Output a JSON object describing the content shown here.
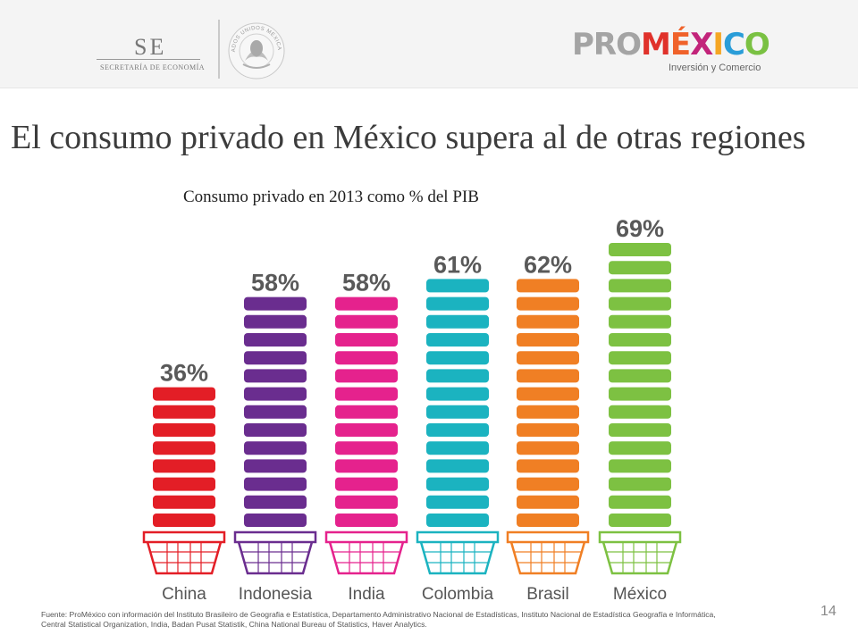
{
  "header": {
    "se_logo": {
      "abbr": "SE",
      "name": "SECRETARÍA DE ECONOMÍA"
    },
    "seal": {
      "text": "ESTADOS UNIDOS MEXICANOS"
    },
    "promexico": {
      "pro": "PRO",
      "mexico_letters": [
        "M",
        "É",
        "X",
        "I",
        "C",
        "O"
      ],
      "tagline": "Inversión y Comercio"
    }
  },
  "page_title": "El consumo privado en México supera al de otras regiones",
  "chart_title": "Consumo privado en 2013 como % del PIB",
  "chart_data": {
    "type": "bar",
    "title": "Consumo privado en 2013 como % del PIB",
    "categories": [
      "China",
      "Indonesia",
      "India",
      "Colombia",
      "Brasil",
      "México"
    ],
    "values": [
      36,
      58,
      58,
      61,
      62,
      69
    ],
    "value_labels": [
      "36%",
      "58%",
      "58%",
      "61%",
      "62%",
      "69%"
    ],
    "colors": [
      "#e31e26",
      "#6a2d8f",
      "#e5228d",
      "#1bb3c0",
      "#f07f24",
      "#7dc142"
    ],
    "unit": "%",
    "ylim": [
      0,
      69
    ],
    "xlabel": "",
    "ylabel": "",
    "grid": false,
    "legend": "none"
  },
  "footer": {
    "source": "Fuente: ProMéxico con información del Instituto Brasileiro de Geografia e Estatística, Departamento Administrativo Nacional de Estadísticas, Instituto Nacional de Estadística Geografía e Informática, Central Statistical Organization, India, Badan Pusat Statistik, China National Bureau of Statistics, Haver Analytics.",
    "page_number": "14"
  }
}
